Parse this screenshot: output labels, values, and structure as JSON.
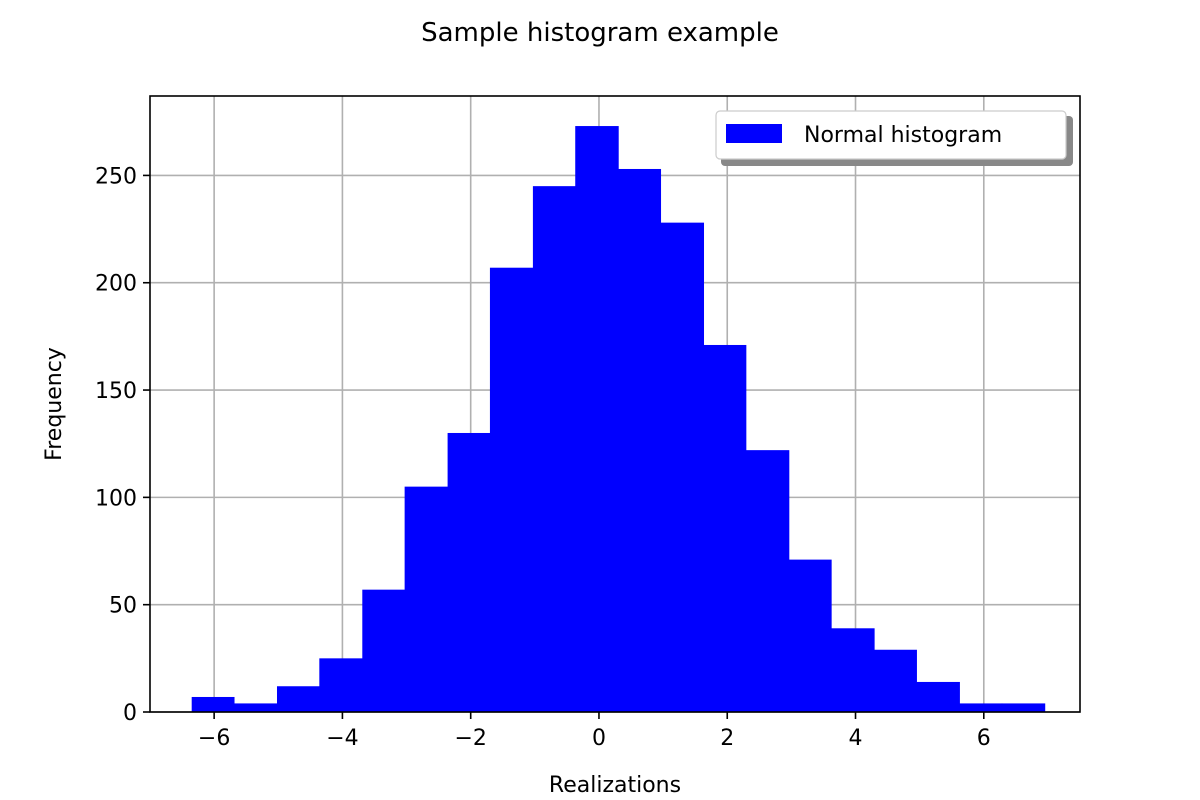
{
  "chart_data": {
    "type": "bar",
    "title": "Sample histogram example",
    "xlabel": "Realizations",
    "ylabel": "Frequency",
    "xlim": [
      -7,
      7.5
    ],
    "ylim": [
      0,
      287
    ],
    "xticks": [
      -6,
      -4,
      -2,
      0,
      2,
      4,
      6
    ],
    "xtick_labels": [
      "−6",
      "−4",
      "−2",
      "0",
      "2",
      "4",
      "6"
    ],
    "yticks": [
      0,
      50,
      100,
      150,
      200,
      250
    ],
    "ytick_labels": [
      "0",
      "50",
      "100",
      "150",
      "200",
      "250"
    ],
    "grid": true,
    "legend_position": "top-right",
    "series": [
      {
        "name": "Normal histogram",
        "color": "#0000ff",
        "bin_edges": [
          -6.35,
          -5.69,
          -5.02,
          -4.36,
          -3.69,
          -3.03,
          -2.36,
          -1.7,
          -1.03,
          -0.37,
          0.3,
          0.96,
          1.63,
          2.29,
          2.96,
          3.62,
          4.29,
          4.95,
          5.62,
          6.28,
          6.95
        ],
        "values": [
          7,
          4,
          12,
          25,
          57,
          105,
          130,
          207,
          245,
          273,
          253,
          228,
          171,
          122,
          71,
          39,
          29,
          14,
          4,
          4
        ]
      }
    ]
  }
}
